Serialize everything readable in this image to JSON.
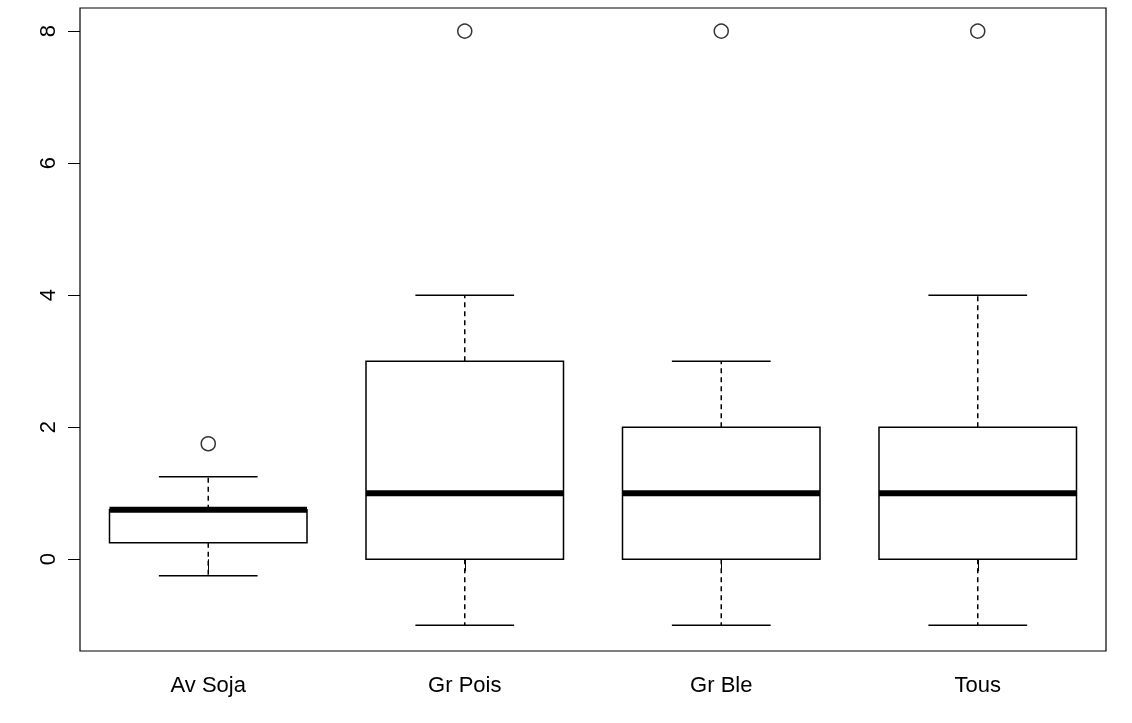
{
  "chart_data": {
    "type": "box",
    "categories": [
      "Av Soja",
      "Gr Pois",
      "Gr Ble",
      "Tous"
    ],
    "boxes": [
      {
        "low": -0.25,
        "q1": 0.25,
        "median": 0.75,
        "q3": 0.75,
        "high": 1.25,
        "outliers": [
          1.75
        ]
      },
      {
        "low": -1,
        "q1": 0,
        "median": 1,
        "q3": 3,
        "high": 4,
        "outliers": [
          8
        ]
      },
      {
        "low": -1,
        "q1": 0,
        "median": 1,
        "q3": 2,
        "high": 3,
        "outliers": [
          8
        ]
      },
      {
        "low": -1,
        "q1": 0,
        "median": 1,
        "q3": 2,
        "high": 4,
        "outliers": [
          8
        ]
      }
    ],
    "color": "#000000",
    "ylim": [
      -1.39,
      8.35
    ],
    "yticks": [
      0,
      2,
      4,
      6,
      8
    ],
    "grid": false
  }
}
